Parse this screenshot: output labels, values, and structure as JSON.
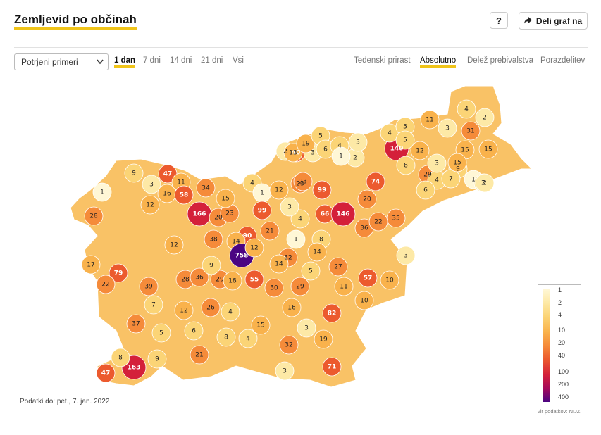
{
  "header": {
    "title": "Zemljevid po občinah",
    "help_label": "?",
    "share_label": "Deli graf na",
    "share_icon": "share-arrow-icon"
  },
  "controls": {
    "select_value": "Potrjeni primeri",
    "time_tabs": [
      {
        "label": "1 dan",
        "active": true
      },
      {
        "label": "7 dni",
        "active": false
      },
      {
        "label": "14 dni",
        "active": false
      },
      {
        "label": "21 dni",
        "active": false
      },
      {
        "label": "Vsi",
        "active": false
      }
    ],
    "view_tabs": [
      {
        "label": "Tedenski prirast",
        "active": false
      },
      {
        "label": "Absolutno",
        "active": true
      },
      {
        "label": "Delež prebivalstva",
        "active": false
      },
      {
        "label": "Porazdelitev",
        "active": false
      }
    ]
  },
  "legend": {
    "labels": [
      "1",
      "2",
      "4",
      "10",
      "20",
      "40",
      "100",
      "200",
      "400"
    ],
    "colors": [
      "#fff7d6",
      "#fde9a6",
      "#fbd476",
      "#f9b24c",
      "#f58b3a",
      "#ec5a2e",
      "#d4203a",
      "#a40a5a",
      "#4b0582"
    ]
  },
  "municipality_values": [
    1,
    9,
    47,
    3,
    16,
    11,
    58,
    34,
    12,
    28,
    166,
    20,
    23,
    15,
    4,
    1,
    99,
    12,
    23,
    99,
    2,
    40,
    3,
    13,
    19,
    5,
    6,
    4,
    2,
    1,
    3,
    140,
    31,
    4,
    5,
    12,
    8,
    29,
    15,
    74,
    66,
    146,
    20,
    36,
    35,
    22,
    1,
    8,
    90,
    38,
    14,
    758,
    12,
    21,
    32,
    23,
    14,
    4,
    3,
    12,
    17,
    79,
    22,
    39,
    28,
    36,
    29,
    9,
    18,
    55,
    30,
    29,
    14,
    27,
    57,
    10,
    11,
    5,
    3,
    12,
    26,
    4,
    15,
    16,
    82,
    10,
    3,
    7,
    37,
    5,
    6,
    8,
    4,
    21,
    32,
    19,
    71,
    163,
    9,
    8,
    47,
    3,
    1,
    2,
    4,
    6,
    9,
    7,
    3,
    15,
    2,
    11,
    3,
    15,
    5,
    4,
    2
  ],
  "footer": {
    "data_date": "Podatki do: pet., 7. jan. 2022",
    "source": "vir podatkov: NIJZ"
  }
}
